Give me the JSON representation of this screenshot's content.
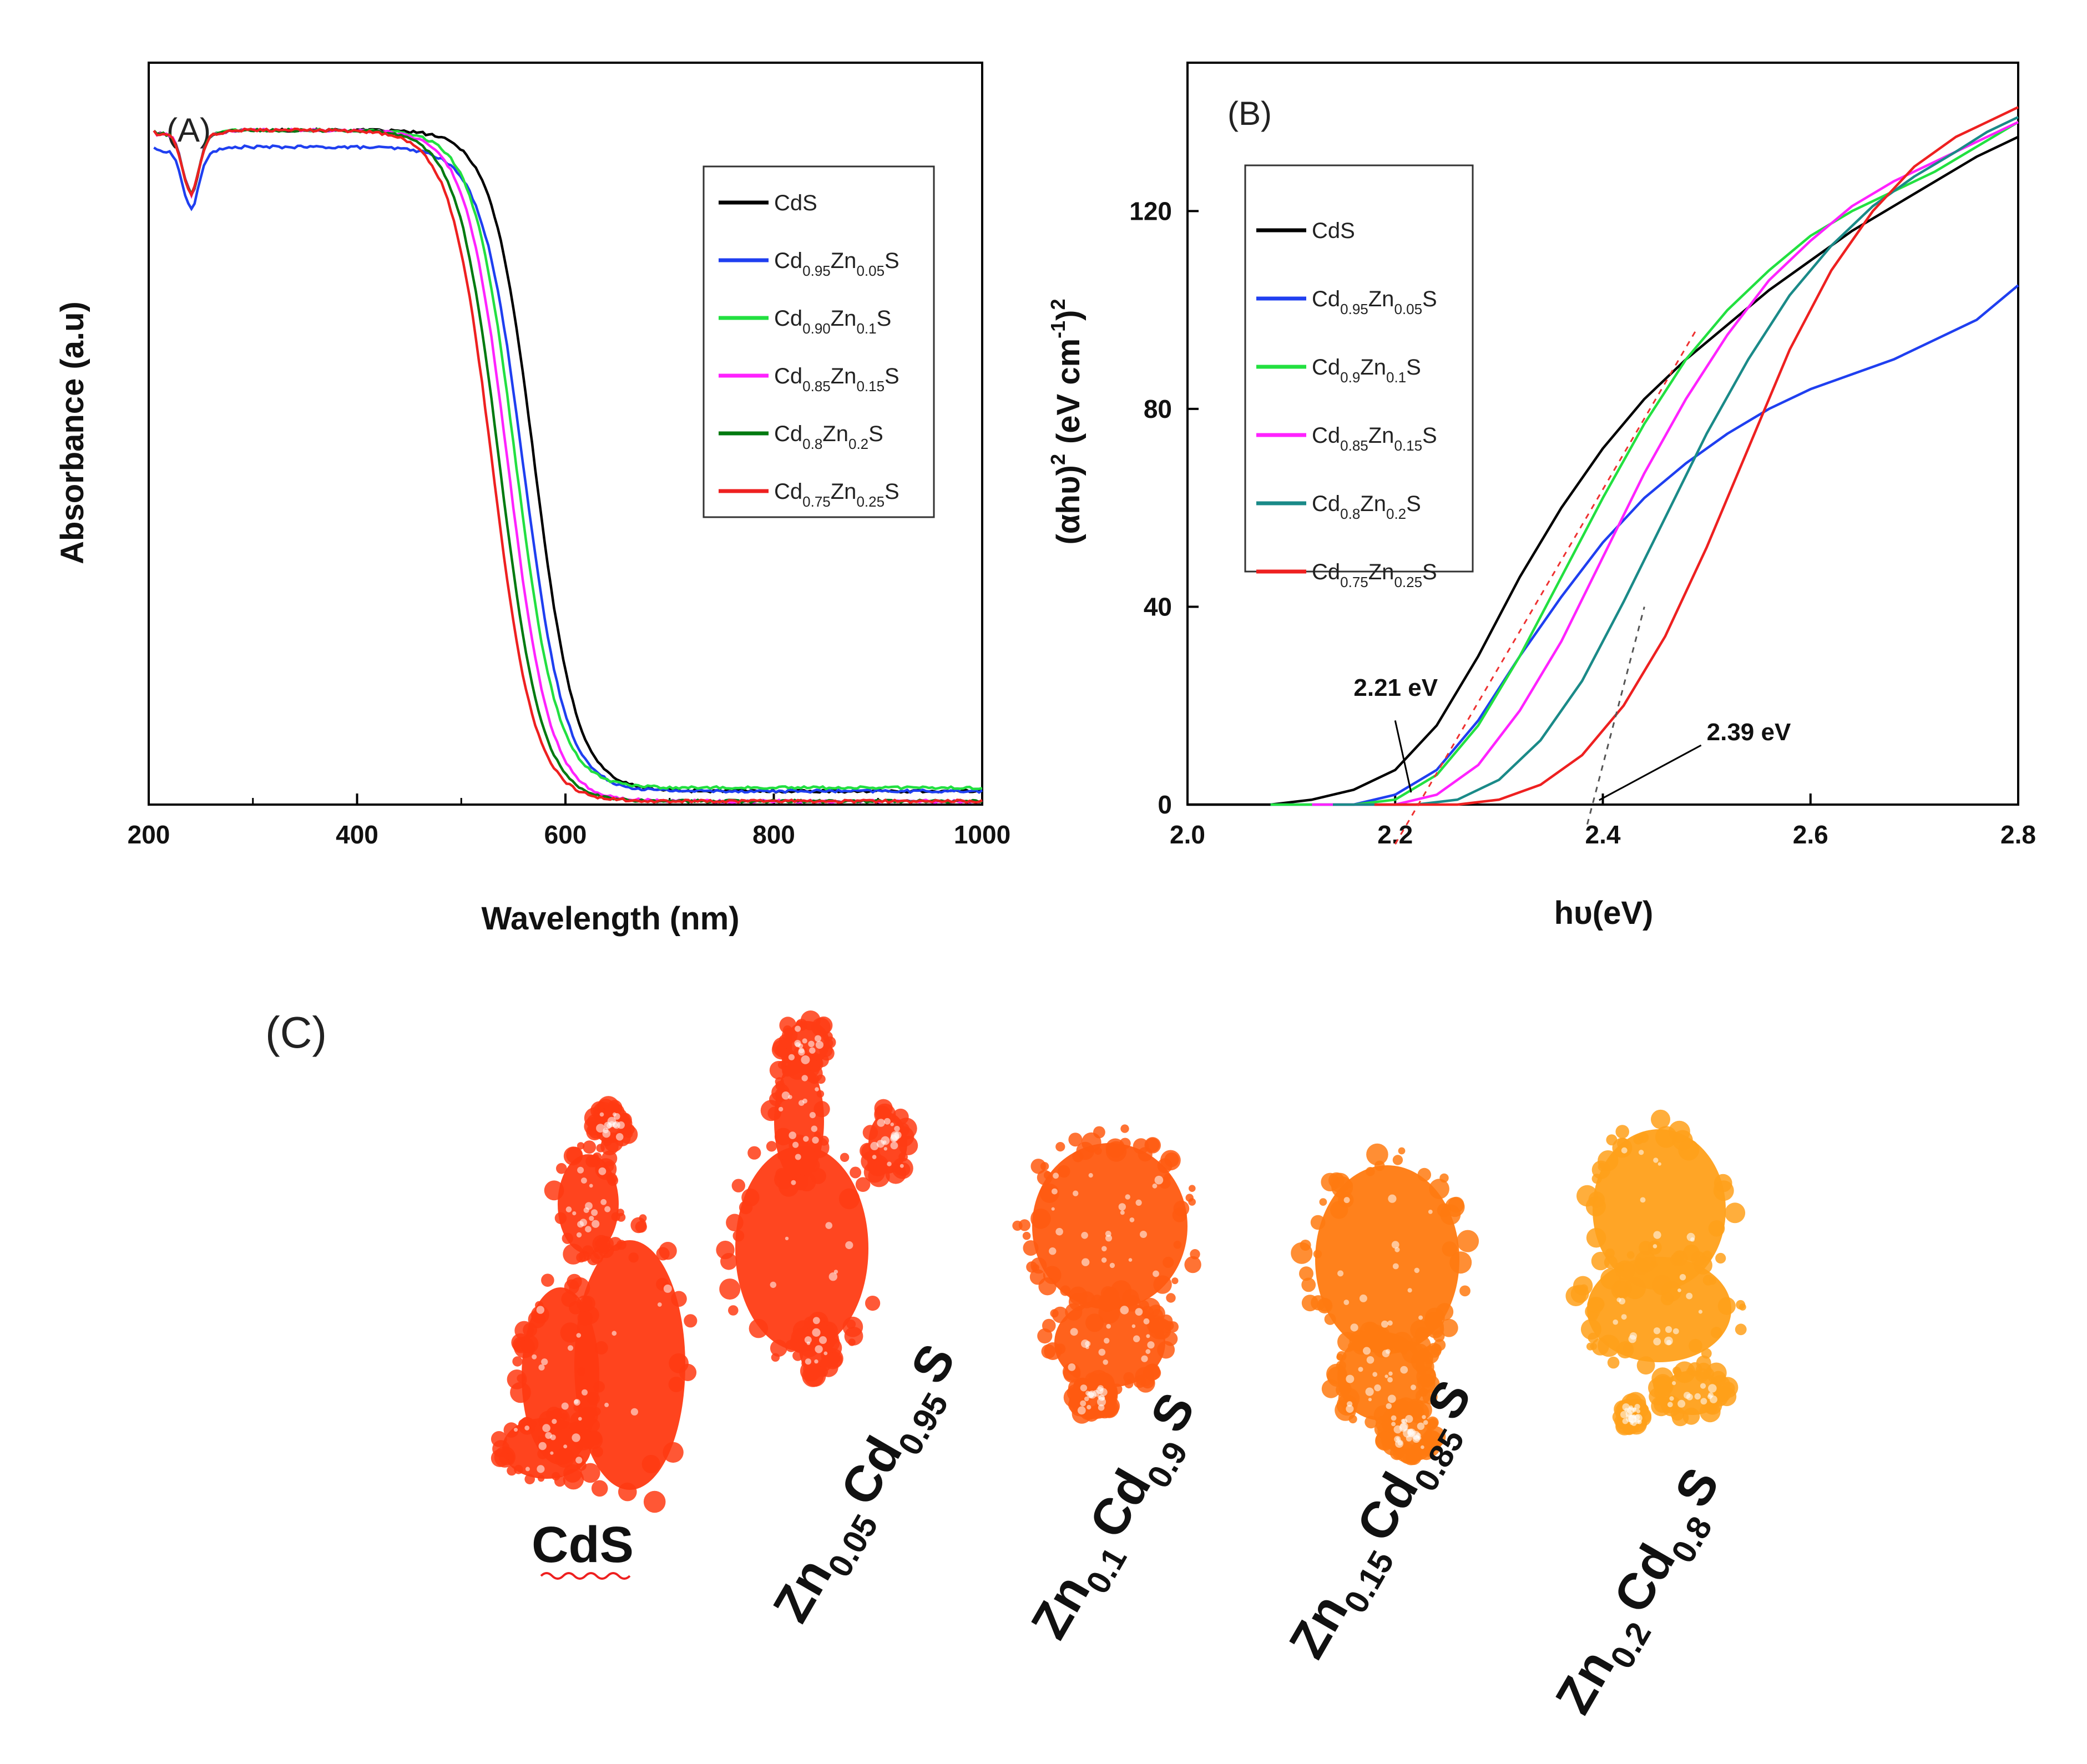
{
  "chart_data": [
    {
      "panel": "(A)",
      "type": "line",
      "xlabel": "Wavelength (nm)",
      "ylabel": "Absorbance (a.u)",
      "xlim": [
        200,
        1000
      ],
      "xticks": [
        "200",
        "400",
        "600",
        "800",
        "1000"
      ],
      "ylim": [
        0,
        1.1
      ],
      "y_ticks_shown": false,
      "legend_position": "top-right",
      "series": [
        {
          "name": "CdS",
          "subs": [
            "",
            ""
          ],
          "color": "#000000",
          "edge": 570,
          "plateau": 1.0,
          "base": 0.02
        },
        {
          "name": "Cd Zn S",
          "subs": [
            "0.95",
            "0.05"
          ],
          "color": "#1f3ff0",
          "edge": 560,
          "plateau": 0.975,
          "base": 0.02
        },
        {
          "name": "Cd Zn S",
          "subs": [
            "0.90",
            "0.1"
          ],
          "color": "#22e040",
          "edge": 552,
          "plateau": 1.0,
          "base": 0.025
        },
        {
          "name": "Cd Zn S",
          "subs": [
            "0.85",
            "0.15"
          ],
          "color": "#ff22ff",
          "edge": 545,
          "plateau": 1.0,
          "base": 0.005
        },
        {
          "name": "Cd Zn S",
          "subs": [
            "0.8",
            "0.2"
          ],
          "color": "#007a10",
          "edge": 537,
          "plateau": 1.0,
          "base": 0.005
        },
        {
          "name": "Cd Zn S",
          "subs": [
            "0.75",
            "0.25"
          ],
          "color": "#ee2020",
          "edge": 530,
          "plateau": 1.0,
          "base": 0.005
        }
      ]
    },
    {
      "panel": "(B)",
      "type": "line",
      "xlabel": "hυ(eV)",
      "ylabel": "(αhυ)² (eV cm⁻¹)²",
      "ylabel_parts": {
        "open": "(",
        "alpha": "αhυ",
        "close": ")",
        "exp1": "2",
        "units": "(eV cm",
        "exp2": "-1",
        "close2": ")",
        "exp3": "2"
      },
      "xlim": [
        2.0,
        2.8
      ],
      "xticks": [
        "2.0",
        "2.2",
        "2.4",
        "2.6",
        "2.8"
      ],
      "ylim": [
        0,
        150
      ],
      "yticks": [
        "0",
        "40",
        "80",
        "120"
      ],
      "legend_position": "top-left",
      "annotations": [
        {
          "text": "2.21 eV",
          "x": 2.21,
          "y": 0
        },
        {
          "text": "2.39 eV",
          "x": 2.39,
          "y": 0
        }
      ],
      "series": [
        {
          "name": "CdS",
          "subs": [
            "",
            ""
          ],
          "color": "#000000",
          "points": [
            [
              2.08,
              0
            ],
            [
              2.12,
              1
            ],
            [
              2.16,
              3
            ],
            [
              2.2,
              7
            ],
            [
              2.24,
              16
            ],
            [
              2.28,
              30
            ],
            [
              2.32,
              46
            ],
            [
              2.36,
              60
            ],
            [
              2.4,
              72
            ],
            [
              2.44,
              82
            ],
            [
              2.48,
              90
            ],
            [
              2.52,
              97
            ],
            [
              2.56,
              104
            ],
            [
              2.6,
              110
            ],
            [
              2.64,
              116
            ],
            [
              2.68,
              121
            ],
            [
              2.72,
              126
            ],
            [
              2.76,
              131
            ],
            [
              2.8,
              135
            ]
          ]
        },
        {
          "name": "Cd Zn S",
          "subs": [
            "0.95",
            "0.05"
          ],
          "color": "#1f3ff0",
          "points": [
            [
              2.16,
              0
            ],
            [
              2.2,
              2
            ],
            [
              2.24,
              7
            ],
            [
              2.28,
              17
            ],
            [
              2.32,
              30
            ],
            [
              2.36,
              42
            ],
            [
              2.4,
              53
            ],
            [
              2.44,
              62
            ],
            [
              2.48,
              69
            ],
            [
              2.52,
              75
            ],
            [
              2.56,
              80
            ],
            [
              2.6,
              84
            ],
            [
              2.64,
              87
            ],
            [
              2.68,
              90
            ],
            [
              2.72,
              94
            ],
            [
              2.76,
              98
            ],
            [
              2.8,
              105
            ]
          ]
        },
        {
          "name": "Cd Zn S",
          "subs": [
            "0.9",
            "0.1"
          ],
          "color": "#22e040",
          "points": [
            [
              2.16,
              0
            ],
            [
              2.2,
              1
            ],
            [
              2.24,
              6
            ],
            [
              2.28,
              16
            ],
            [
              2.32,
              30
            ],
            [
              2.36,
              46
            ],
            [
              2.4,
              62
            ],
            [
              2.44,
              77
            ],
            [
              2.48,
              90
            ],
            [
              2.52,
              100
            ],
            [
              2.56,
              108
            ],
            [
              2.6,
              115
            ],
            [
              2.64,
              120
            ],
            [
              2.68,
              124
            ],
            [
              2.72,
              128
            ],
            [
              2.76,
              133
            ],
            [
              2.8,
              138
            ]
          ]
        },
        {
          "name": "Cd Zn S",
          "subs": [
            "0.85",
            "0.15"
          ],
          "color": "#ff22ff",
          "points": [
            [
              2.2,
              0
            ],
            [
              2.24,
              2
            ],
            [
              2.28,
              8
            ],
            [
              2.32,
              19
            ],
            [
              2.36,
              33
            ],
            [
              2.4,
              50
            ],
            [
              2.44,
              67
            ],
            [
              2.48,
              82
            ],
            [
              2.52,
              95
            ],
            [
              2.56,
              106
            ],
            [
              2.6,
              114
            ],
            [
              2.64,
              121
            ],
            [
              2.68,
              126
            ],
            [
              2.72,
              130
            ],
            [
              2.76,
              134
            ],
            [
              2.8,
              138
            ]
          ]
        },
        {
          "name": "Cd Zn S",
          "subs": [
            "0.8",
            "0.2"
          ],
          "color": "#1a8a88",
          "points": [
            [
              2.22,
              0
            ],
            [
              2.26,
              1
            ],
            [
              2.3,
              5
            ],
            [
              2.34,
              13
            ],
            [
              2.38,
              25
            ],
            [
              2.42,
              41
            ],
            [
              2.46,
              58
            ],
            [
              2.5,
              75
            ],
            [
              2.54,
              90
            ],
            [
              2.58,
              103
            ],
            [
              2.62,
              113
            ],
            [
              2.66,
              121
            ],
            [
              2.7,
              127
            ],
            [
              2.74,
              132
            ],
            [
              2.77,
              136
            ],
            [
              2.8,
              139
            ]
          ]
        },
        {
          "name": "Cd Zn S",
          "subs": [
            "0.75",
            "0.25"
          ],
          "color": "#ee2020",
          "points": [
            [
              2.26,
              0
            ],
            [
              2.3,
              1
            ],
            [
              2.34,
              4
            ],
            [
              2.38,
              10
            ],
            [
              2.42,
              20
            ],
            [
              2.46,
              34
            ],
            [
              2.5,
              52
            ],
            [
              2.54,
              72
            ],
            [
              2.58,
              92
            ],
            [
              2.62,
              108
            ],
            [
              2.66,
              120
            ],
            [
              2.7,
              129
            ],
            [
              2.74,
              135
            ],
            [
              2.77,
              138
            ],
            [
              2.8,
              141
            ]
          ]
        }
      ]
    }
  ],
  "panel_c": {
    "label": "(C)",
    "samples": [
      {
        "el1": "CdS",
        "sub1": "",
        "el2": "",
        "sub2": "",
        "el3": "",
        "color": "#ff3a12"
      },
      {
        "el1": "Zn",
        "sub1": "0.05",
        "el2": "Cd",
        "sub2": "0.95",
        "el3": "S",
        "color": "#ff3c14"
      },
      {
        "el1": "Zn",
        "sub1": "0.1",
        "el2": "Cd",
        "sub2": "0.9",
        "el3": "S",
        "color": "#ff5a10"
      },
      {
        "el1": "Zn",
        "sub1": "0.15",
        "el2": "Cd",
        "sub2": "0.85",
        "el3": "S",
        "color": "#ff7a10"
      },
      {
        "el1": "Zn",
        "sub1": "0.2",
        "el2": "Cd",
        "sub2": "0.8",
        "el3": "S",
        "color": "#ffa01a"
      }
    ]
  }
}
